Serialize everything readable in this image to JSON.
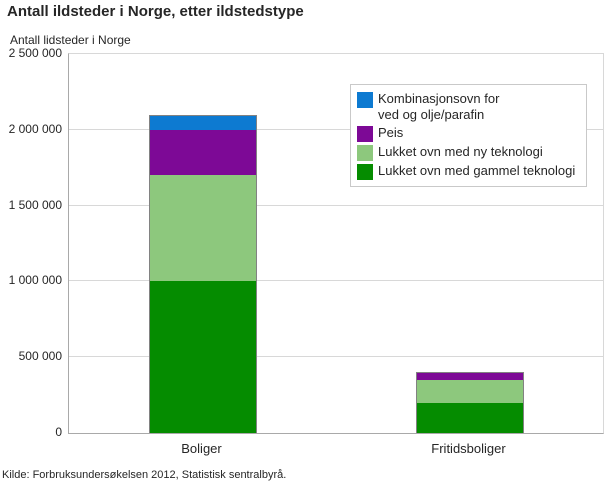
{
  "header": {
    "title": "Antall ildsteder i Norge, etter ildstedstype"
  },
  "chart_data": {
    "type": "bar",
    "stacked": true,
    "title": "Antall ildsteder i Norge, etter ildstedstype",
    "subtitle": "Antall lidsteder i Norge",
    "categories": [
      "Boliger",
      "Fritidsboliger"
    ],
    "series": [
      {
        "name": "Kombinasjonsovn for\nved og olje/parafin",
        "color": "#0d7ad1",
        "values": [
          100000,
          0
        ]
      },
      {
        "name": "Peis",
        "color": "#7d0996",
        "values": [
          300000,
          50000
        ]
      },
      {
        "name": "Lukket ovn med ny teknologi",
        "color": "#8dc87d",
        "values": [
          700000,
          150000
        ]
      },
      {
        "name": "Lukket ovn med gammel teknologi",
        "color": "#058c00",
        "values": [
          1000000,
          200000
        ]
      }
    ],
    "ylim": [
      0,
      2500000
    ],
    "ytick_values": [
      0,
      500000,
      1000000,
      1500000,
      2000000,
      2500000
    ],
    "ytick_labels": [
      "0",
      "500 000",
      "1 000 000",
      "1 500 000",
      "2 000 000",
      "2 500 000"
    ],
    "grid": "horizontal",
    "legend_position": "top-right-inside",
    "xlabel": "",
    "ylabel": "Antall lidsteder i Norge"
  },
  "footer": {
    "source": "Kilde: Forbruksundersøkelsen 2012, Statistisk sentralbyrå."
  }
}
